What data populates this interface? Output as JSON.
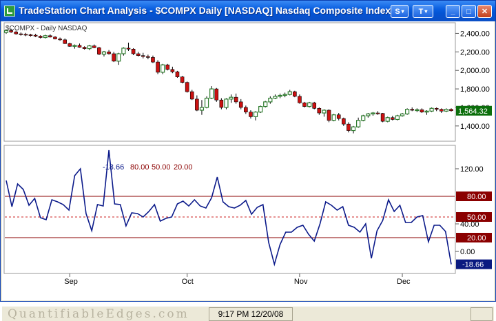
{
  "window": {
    "title": "TradeStation Chart Analysis - $COMPX  Daily  [NASDAQ] Nasdaq Composite Index",
    "buttons": {
      "symbol": "S",
      "tools": "T",
      "minimize": "_",
      "maximize": "□",
      "close": "✕"
    }
  },
  "colors": {
    "up": "#2e7d2e",
    "down": "#cc1111",
    "oscillator": "#0b1a8a",
    "band": "#8b0000",
    "mid_band": "#cc2222",
    "last_price_bg": "#0b6e0b",
    "last_osc_bg": "#0a1a80"
  },
  "price_panel": {
    "label": "$COMPX - Daily  NASDAQ",
    "last_price": "1,564.32",
    "y_ticks": [
      "2,400.00",
      "2,200.00",
      "2,000.00",
      "1,800.00",
      "1,600.00",
      "1,400.00"
    ],
    "y_tick_values": [
      2400,
      2200,
      2000,
      1800,
      1600,
      1400
    ]
  },
  "osc_panel": {
    "label_value": "-18.66",
    "label_levels": [
      "80.00",
      "50.00",
      "20.00"
    ],
    "y_ticks": [
      "120.00",
      "40.00",
      "0.00"
    ],
    "y_tick_values": [
      120,
      40,
      0
    ],
    "level_badges": [
      "80.00",
      "50.00",
      "20.00"
    ],
    "last_value": "-18.66"
  },
  "x_axis": {
    "labels": [
      "Sep",
      "Oct",
      "Nov",
      "Dec"
    ]
  },
  "watermark": "QuantifiableEdges.com",
  "status_time": "9:17 PM 12/20/08",
  "chart_data": [
    {
      "type": "candlestick",
      "title": "$COMPX - Daily  NASDAQ",
      "ylim": [
        1250,
        2500
      ],
      "y_ticks": [
        2400,
        2200,
        2000,
        1800,
        1600,
        1400
      ],
      "x_labels": [
        "Sep",
        "Oct",
        "Nov",
        "Dec"
      ],
      "x_label_bar_index": [
        13,
        37,
        60,
        81
      ],
      "bars": [
        [
          2410,
          2440,
          2395,
          2430
        ],
        [
          2430,
          2450,
          2405,
          2415
        ],
        [
          2415,
          2430,
          2385,
          2395
        ],
        [
          2395,
          2410,
          2375,
          2390
        ],
        [
          2390,
          2405,
          2370,
          2385
        ],
        [
          2385,
          2395,
          2365,
          2380
        ],
        [
          2380,
          2395,
          2360,
          2370
        ],
        [
          2370,
          2380,
          2345,
          2355
        ],
        [
          2355,
          2385,
          2345,
          2375
        ],
        [
          2375,
          2390,
          2355,
          2360
        ],
        [
          2360,
          2370,
          2335,
          2340
        ],
        [
          2340,
          2355,
          2320,
          2330
        ],
        [
          2330,
          2345,
          2285,
          2290
        ],
        [
          2290,
          2300,
          2255,
          2260
        ],
        [
          2260,
          2280,
          2235,
          2270
        ],
        [
          2270,
          2290,
          2245,
          2250
        ],
        [
          2250,
          2260,
          2225,
          2235
        ],
        [
          2235,
          2275,
          2220,
          2265
        ],
        [
          2265,
          2280,
          2240,
          2245
        ],
        [
          2245,
          2255,
          2165,
          2175
        ],
        [
          2175,
          2210,
          2150,
          2200
        ],
        [
          2200,
          2220,
          2170,
          2180
        ],
        [
          2180,
          2200,
          2090,
          2100
        ],
        [
          2100,
          2190,
          2060,
          2180
        ],
        [
          2180,
          2250,
          2160,
          2240
        ],
        [
          2240,
          2300,
          2210,
          2230
        ],
        [
          2230,
          2240,
          2165,
          2180
        ],
        [
          2180,
          2200,
          2150,
          2160
        ],
        [
          2160,
          2190,
          2130,
          2150
        ],
        [
          2150,
          2170,
          2120,
          2140
        ],
        [
          2140,
          2160,
          2080,
          2090
        ],
        [
          2090,
          2110,
          1960,
          1980
        ],
        [
          1980,
          2070,
          1960,
          2060
        ],
        [
          2060,
          2070,
          2000,
          2010
        ],
        [
          2010,
          2040,
          1970,
          1985
        ],
        [
          1985,
          1995,
          1920,
          1930
        ],
        [
          1930,
          1940,
          1860,
          1870
        ],
        [
          1870,
          1880,
          1760,
          1770
        ],
        [
          1770,
          1790,
          1680,
          1690
        ],
        [
          1690,
          1730,
          1560,
          1570
        ],
        [
          1570,
          1680,
          1520,
          1600
        ],
        [
          1600,
          1720,
          1590,
          1700
        ],
        [
          1700,
          1830,
          1690,
          1800
        ],
        [
          1800,
          1810,
          1660,
          1680
        ],
        [
          1680,
          1700,
          1580,
          1600
        ],
        [
          1600,
          1700,
          1580,
          1690
        ],
        [
          1690,
          1740,
          1650,
          1710
        ],
        [
          1710,
          1750,
          1640,
          1660
        ],
        [
          1660,
          1690,
          1580,
          1600
        ],
        [
          1600,
          1620,
          1530,
          1550
        ],
        [
          1550,
          1570,
          1480,
          1500
        ],
        [
          1500,
          1560,
          1460,
          1550
        ],
        [
          1550,
          1620,
          1540,
          1610
        ],
        [
          1610,
          1670,
          1600,
          1660
        ],
        [
          1660,
          1720,
          1640,
          1700
        ],
        [
          1700,
          1740,
          1690,
          1720
        ],
        [
          1720,
          1750,
          1700,
          1730
        ],
        [
          1730,
          1760,
          1710,
          1740
        ],
        [
          1740,
          1790,
          1730,
          1770
        ],
        [
          1770,
          1780,
          1710,
          1720
        ],
        [
          1720,
          1740,
          1640,
          1650
        ],
        [
          1650,
          1660,
          1600,
          1610
        ],
        [
          1610,
          1660,
          1600,
          1650
        ],
        [
          1650,
          1660,
          1580,
          1590
        ],
        [
          1590,
          1600,
          1520,
          1540
        ],
        [
          1540,
          1580,
          1500,
          1570
        ],
        [
          1570,
          1580,
          1440,
          1460
        ],
        [
          1460,
          1530,
          1450,
          1520
        ],
        [
          1520,
          1540,
          1460,
          1480
        ],
        [
          1480,
          1490,
          1400,
          1420
        ],
        [
          1420,
          1440,
          1330,
          1350
        ],
        [
          1350,
          1400,
          1320,
          1390
        ],
        [
          1390,
          1490,
          1380,
          1460
        ],
        [
          1460,
          1520,
          1450,
          1510
        ],
        [
          1510,
          1540,
          1490,
          1530
        ],
        [
          1530,
          1550,
          1510,
          1540
        ],
        [
          1540,
          1560,
          1520,
          1535
        ],
        [
          1535,
          1540,
          1440,
          1450
        ],
        [
          1450,
          1500,
          1440,
          1490
        ],
        [
          1490,
          1510,
          1460,
          1470
        ],
        [
          1470,
          1520,
          1460,
          1510
        ],
        [
          1510,
          1540,
          1500,
          1530
        ],
        [
          1530,
          1590,
          1520,
          1580
        ],
        [
          1580,
          1600,
          1560,
          1570
        ],
        [
          1570,
          1590,
          1550,
          1575
        ],
        [
          1575,
          1590,
          1540,
          1550
        ],
        [
          1550,
          1570,
          1520,
          1560
        ],
        [
          1560,
          1600,
          1550,
          1590
        ],
        [
          1590,
          1600,
          1560,
          1580
        ],
        [
          1580,
          1590,
          1540,
          1560
        ],
        [
          1560,
          1590,
          1550,
          1580
        ],
        [
          1580,
          1590,
          1555,
          1564.32
        ]
      ]
    },
    {
      "type": "line",
      "title": "-18.66  80.00  50.00  20.00",
      "ylim": [
        -30,
        150
      ],
      "y_ticks": [
        120,
        40,
        0
      ],
      "levels": [
        80,
        50,
        20
      ],
      "series": [
        {
          "values": [
            103,
            65,
            98,
            90,
            67,
            77,
            49,
            46,
            75,
            72,
            68,
            60,
            110,
            120,
            55,
            30,
            68,
            66,
            147,
            69,
            68,
            37,
            56,
            55,
            50,
            58,
            68,
            44,
            48,
            50,
            69,
            73,
            66,
            75,
            66,
            63,
            78,
            108,
            72,
            65,
            63,
            67,
            74,
            54,
            64,
            68,
            13,
            -18.66,
            10,
            28,
            28,
            35,
            38,
            25,
            15,
            40,
            72,
            67,
            60,
            65,
            38,
            35,
            28,
            40,
            -10,
            30,
            45,
            75,
            58,
            67,
            42,
            42,
            50,
            52,
            14,
            38,
            38,
            29,
            -18.66
          ]
        }
      ]
    }
  ]
}
